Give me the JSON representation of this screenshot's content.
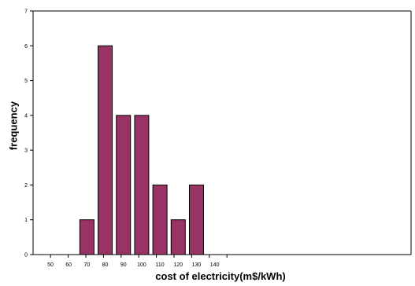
{
  "chart_data": {
    "type": "bar",
    "title": "",
    "xlabel": "cost of electricity(m$/kWh)",
    "ylabel": "frequency",
    "categories": [
      "50",
      "60",
      "70",
      "80",
      "90",
      "100",
      "110",
      "120",
      "130",
      "140"
    ],
    "values": [
      0,
      0,
      1,
      6,
      4,
      4,
      2,
      1,
      2,
      0
    ],
    "ylim": [
      0,
      7
    ],
    "yticks": [
      "0",
      "1",
      "2",
      "3",
      "4",
      "5",
      "6",
      "7"
    ],
    "grid": false,
    "bar_color": "#993366",
    "bar_edge_color": "#000000"
  }
}
